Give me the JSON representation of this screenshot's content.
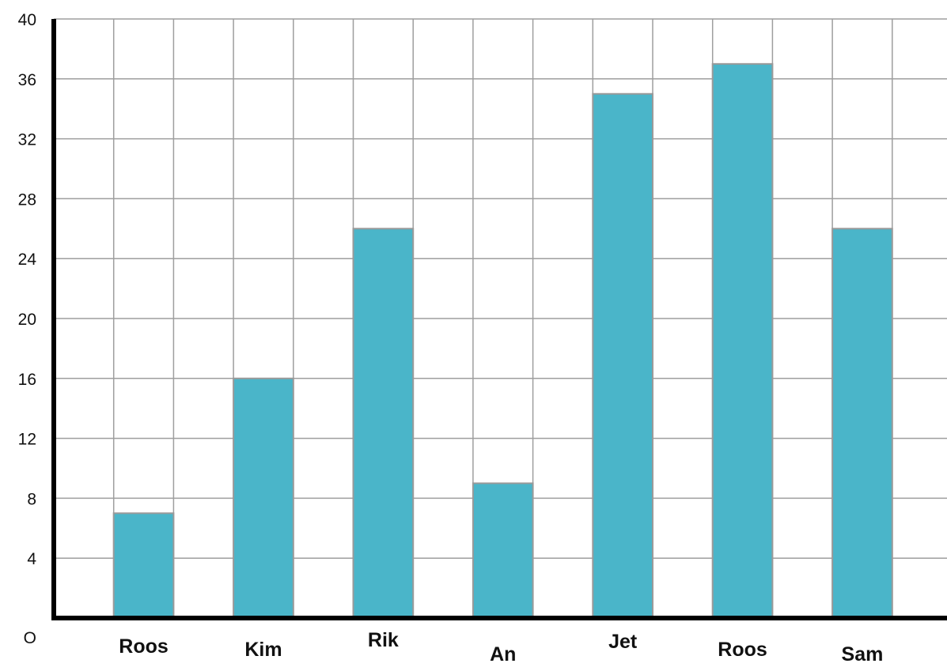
{
  "chart_data": {
    "type": "bar",
    "categories": [
      "Roos",
      "Kim",
      "Rik",
      "An",
      "Jet",
      "Roos",
      "Sam"
    ],
    "values": [
      7,
      16,
      26,
      9,
      35,
      37,
      26
    ],
    "title": "",
    "xlabel": "",
    "ylabel": "",
    "ylim": [
      0,
      40
    ],
    "yticks": [
      "O",
      "4",
      "8",
      "12",
      "16",
      "20",
      "24",
      "28",
      "32",
      "36",
      "40"
    ],
    "grid": true,
    "legend": "none",
    "colors": {
      "bar_fill": "#4ab5c9",
      "bar_stroke": "#9a9a9a",
      "grid": "#9e9e9e",
      "axis": "#000000"
    }
  }
}
